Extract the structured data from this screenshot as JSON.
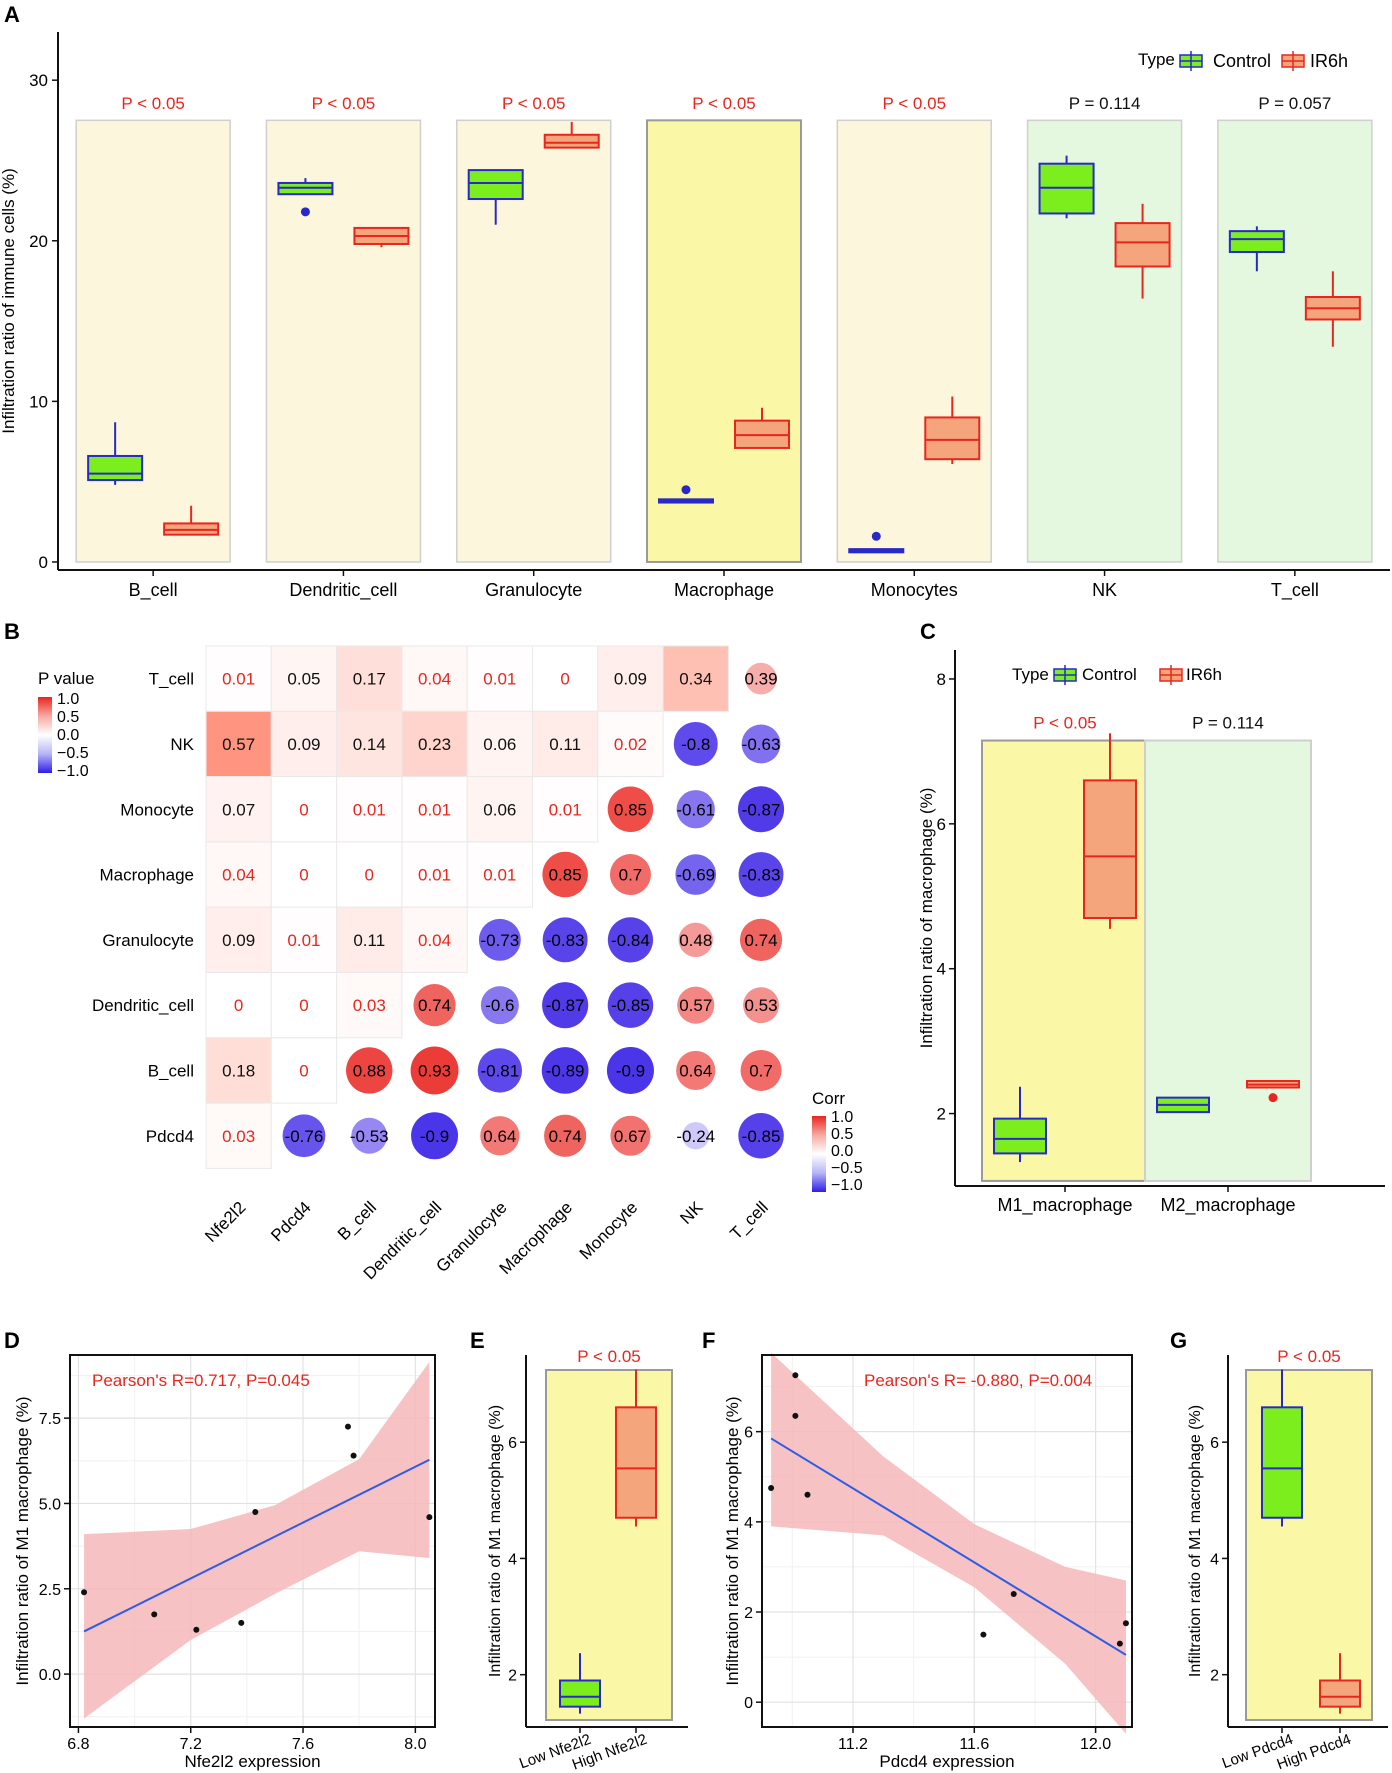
{
  "colors": {
    "control_fill": "#7CEE1E",
    "control_stroke": "#2929C8",
    "ir_fill": "#F4A57C",
    "ir_stroke": "#E8261E",
    "sig": "#E8261E",
    "ns": "#111111",
    "panel_yellow": "#FBF6DC",
    "panel_yellow_hi": "#FAF7A6",
    "panel_green": "#E4F8E0",
    "fit_line": "#2E5CE6",
    "ci_band": "#F6B7B8"
  },
  "chart_data": [
    {
      "panel": "A",
      "type": "box",
      "ylabel": "Infiltration ratio of immune cells (%)",
      "yticks": [
        0,
        10,
        20,
        30
      ],
      "ylim": [
        -0.5,
        33
      ],
      "legend": {
        "title": "Type",
        "items": [
          "Control",
          "IR6h"
        ]
      },
      "categories": [
        "B_cell",
        "Dendritic_cell",
        "Granulocyte",
        "Macrophage",
        "Monocytes",
        "NK",
        "T_cell"
      ],
      "pvalues": [
        "P < 0.05",
        "P < 0.05",
        "P < 0.05",
        "P < 0.05",
        "P < 0.05",
        "P = 0.114",
        "P = 0.057"
      ],
      "significant": [
        true,
        true,
        true,
        true,
        true,
        false,
        false
      ],
      "series": [
        {
          "name": "Control",
          "boxes": [
            {
              "min": 4.8,
              "q1": 5.1,
              "median": 5.5,
              "q3": 6.6,
              "max": 8.7
            },
            {
              "min": 22.9,
              "q1": 22.9,
              "median": 23.3,
              "q3": 23.6,
              "max": 23.9,
              "outliers": [
                21.8
              ]
            },
            {
              "min": 21.0,
              "q1": 22.6,
              "median": 23.6,
              "q3": 24.4,
              "max": 24.4
            },
            {
              "min": 3.7,
              "q1": 3.7,
              "median": 3.8,
              "q3": 3.9,
              "max": 3.9,
              "outliers": [
                4.5
              ]
            },
            {
              "min": 0.6,
              "q1": 0.6,
              "median": 0.7,
              "q3": 0.8,
              "max": 0.8,
              "outliers": [
                1.6
              ]
            },
            {
              "min": 21.4,
              "q1": 21.7,
              "median": 23.3,
              "q3": 24.8,
              "max": 25.3
            },
            {
              "min": 18.1,
              "q1": 19.3,
              "median": 20.1,
              "q3": 20.6,
              "max": 20.9
            }
          ]
        },
        {
          "name": "IR6h",
          "boxes": [
            {
              "min": 1.7,
              "q1": 1.7,
              "median": 2.0,
              "q3": 2.4,
              "max": 3.5
            },
            {
              "min": 19.6,
              "q1": 19.8,
              "median": 20.3,
              "q3": 20.8,
              "max": 20.8
            },
            {
              "min": 25.8,
              "q1": 25.8,
              "median": 26.1,
              "q3": 26.6,
              "max": 27.4
            },
            {
              "min": 7.1,
              "q1": 7.1,
              "median": 7.9,
              "q3": 8.8,
              "max": 9.6
            },
            {
              "min": 6.1,
              "q1": 6.4,
              "median": 7.6,
              "q3": 9.0,
              "max": 10.3
            },
            {
              "min": 16.4,
              "q1": 18.4,
              "median": 19.9,
              "q3": 21.1,
              "max": 22.3
            },
            {
              "min": 13.4,
              "q1": 15.1,
              "median": 15.8,
              "q3": 16.5,
              "max": 18.1
            }
          ]
        }
      ]
    },
    {
      "panel": "B",
      "type": "heatmap",
      "rows": [
        "T_cell",
        "NK",
        "Monocyte",
        "Macrophage",
        "Granulocyte",
        "Dendritic_cell",
        "B_cell",
        "Pdcd4"
      ],
      "cols": [
        "Nfe2l2",
        "Pdcd4",
        "B_cell",
        "Dendritic_cell",
        "Granulocyte",
        "Macrophage",
        "Monocyte",
        "NK",
        "T_cell"
      ],
      "pvalue_legend": {
        "title": "P value",
        "ticks": [
          "1.0",
          "0.5",
          "0.0",
          "−0.5",
          "−1.0"
        ]
      },
      "corr_legend": {
        "title": "Corr",
        "ticks": [
          "1.0",
          "0.5",
          "0.0",
          "−0.5",
          "−1.0"
        ]
      },
      "pvalues": [
        [
          "0.01",
          "0.05",
          "0.17",
          "0.04",
          "0.01",
          "0",
          "0.09",
          "0.34"
        ],
        [
          "0.57",
          "0.09",
          "0.14",
          "0.23",
          "0.06",
          "0.11",
          "0.02"
        ],
        [
          "0.07",
          "0",
          "0.01",
          "0.01",
          "0.06",
          "0.01"
        ],
        [
          "0.04",
          "0",
          "0",
          "0.01",
          "0.01"
        ],
        [
          "0.09",
          "0.01",
          "0.11",
          "0.04"
        ],
        [
          "0",
          "0",
          "0.03"
        ],
        [
          "0.18",
          "0"
        ],
        [
          "0.03"
        ]
      ],
      "corr": [
        [
          "",
          "",
          "",
          "",
          "",
          "",
          "",
          "",
          "0.39"
        ],
        [
          "",
          "",
          "",
          "",
          "",
          "",
          "",
          "-0.8",
          "-0.63"
        ],
        [
          "",
          "",
          "",
          "",
          "",
          "",
          "0.85",
          "-0.61",
          "-0.87"
        ],
        [
          "",
          "",
          "",
          "",
          "",
          "0.85",
          "0.7",
          "-0.69",
          "-0.83"
        ],
        [
          "",
          "",
          "",
          "",
          "-0.73",
          "-0.83",
          "-0.84",
          "0.48",
          "0.74"
        ],
        [
          "",
          "",
          "",
          "0.74",
          "-0.6",
          "-0.87",
          "-0.85",
          "0.57",
          "0.53"
        ],
        [
          "",
          "",
          "0.88",
          "0.93",
          "-0.81",
          "-0.89",
          "-0.9",
          "0.64",
          "0.7"
        ],
        [
          "",
          "-0.76",
          "-0.53",
          "-0.9",
          "0.64",
          "0.74",
          "0.67",
          "-0.24",
          "-0.85"
        ]
      ]
    },
    {
      "panel": "C",
      "type": "box",
      "ylabel": "Infiltration ratio of macrophage (%)",
      "yticks": [
        2,
        4,
        6,
        8
      ],
      "ylim": [
        1.0,
        8.4
      ],
      "legend": {
        "title": "Type",
        "items": [
          "Control",
          "IR6h"
        ]
      },
      "categories": [
        "M1_macrophage",
        "M2_macrophage"
      ],
      "pvalues": [
        "P < 0.05",
        "P = 0.114"
      ],
      "significant": [
        true,
        false
      ],
      "series": [
        {
          "name": "Control",
          "boxes": [
            {
              "min": 1.33,
              "q1": 1.45,
              "median": 1.65,
              "q3": 1.93,
              "max": 2.37
            },
            {
              "min": 2.02,
              "q1": 2.02,
              "median": 2.12,
              "q3": 2.22,
              "max": 2.22
            }
          ]
        },
        {
          "name": "IR6h",
          "boxes": [
            {
              "min": 4.55,
              "q1": 4.7,
              "median": 5.55,
              "q3": 6.6,
              "max": 7.25
            },
            {
              "min": 2.36,
              "q1": 2.36,
              "median": 2.4,
              "q3": 2.45,
              "max": 2.45,
              "outliers": [
                2.22
              ]
            }
          ]
        }
      ]
    },
    {
      "panel": "D",
      "type": "scatter",
      "title": "Pearson's R=0.717, P=0.045",
      "xlabel": "Nfe2l2 expression",
      "ylabel": "Infiltration ratio of M1 macrophage (%)",
      "xticks": [
        "6.8",
        "7.2",
        "7.6",
        "8.0"
      ],
      "yticks": [
        "0.0",
        "2.5",
        "5.0",
        "7.5"
      ],
      "xlim": [
        6.77,
        8.07
      ],
      "ylim": [
        -1.55,
        9.35
      ],
      "x": [
        6.82,
        7.07,
        7.22,
        7.38,
        7.43,
        7.76,
        7.78,
        8.05
      ],
      "y": [
        2.4,
        1.75,
        1.3,
        1.5,
        4.75,
        7.25,
        6.4,
        4.6
      ],
      "fit": {
        "x": [
          6.82,
          8.05
        ],
        "y": [
          1.25,
          6.28
        ]
      },
      "ci": [
        [
          6.82,
          4.1,
          -1.3
        ],
        [
          7.2,
          4.25,
          1.0
        ],
        [
          7.5,
          4.95,
          2.35
        ],
        [
          7.8,
          6.3,
          3.6
        ],
        [
          8.05,
          9.15,
          3.4
        ]
      ]
    },
    {
      "panel": "E",
      "type": "box",
      "ylabel": "Infiltration ratio of M1 macrophage (%)",
      "yticks": [
        2,
        4,
        6
      ],
      "ylim": [
        1.1,
        7.5
      ],
      "categories": [
        "Low Nfe2l2",
        "High Nfe2l2"
      ],
      "pvalues": [
        "P < 0.05"
      ],
      "boxes": [
        {
          "min": 1.33,
          "q1": 1.45,
          "median": 1.62,
          "q3": 1.9,
          "max": 2.37
        },
        {
          "min": 4.55,
          "q1": 4.7,
          "median": 5.55,
          "q3": 6.6,
          "max": 7.25
        }
      ]
    },
    {
      "panel": "F",
      "type": "scatter",
      "title": "Pearson's R= -0.880, P=0.004",
      "xlabel": "Pdcd4 expression",
      "ylabel": "Infiltration ratio of M1 macrophage (%)",
      "xticks": [
        "11.2",
        "11.6",
        "12.0"
      ],
      "yticks": [
        "0",
        "2",
        "4",
        "6"
      ],
      "xlim": [
        10.9,
        12.12
      ],
      "ylim": [
        -0.55,
        7.7
      ],
      "x": [
        10.93,
        11.01,
        11.01,
        11.05,
        11.63,
        11.73,
        12.08,
        12.1
      ],
      "y": [
        4.75,
        7.25,
        6.35,
        4.6,
        1.5,
        2.4,
        1.3,
        1.75
      ],
      "fit": {
        "x": [
          10.93,
          12.1
        ],
        "y": [
          5.85,
          1.05
        ]
      },
      "ci": [
        [
          10.93,
          7.75,
          3.9
        ],
        [
          11.3,
          5.45,
          3.7
        ],
        [
          11.6,
          3.95,
          2.55
        ],
        [
          11.9,
          3.0,
          0.85
        ],
        [
          12.1,
          2.7,
          -0.7
        ]
      ]
    },
    {
      "panel": "G",
      "type": "box",
      "ylabel": "Infiltration ratio of M1 macrophage (%)",
      "yticks": [
        2,
        4,
        6
      ],
      "ylim": [
        1.1,
        7.5
      ],
      "categories": [
        "Low Pdcd4",
        "High Pdcd4"
      ],
      "pvalues": [
        "P < 0.05"
      ],
      "boxes": [
        {
          "min": 4.55,
          "q1": 4.7,
          "median": 5.55,
          "q3": 6.6,
          "max": 7.25
        },
        {
          "min": 1.33,
          "q1": 1.45,
          "median": 1.62,
          "q3": 1.9,
          "max": 2.37
        }
      ]
    }
  ]
}
